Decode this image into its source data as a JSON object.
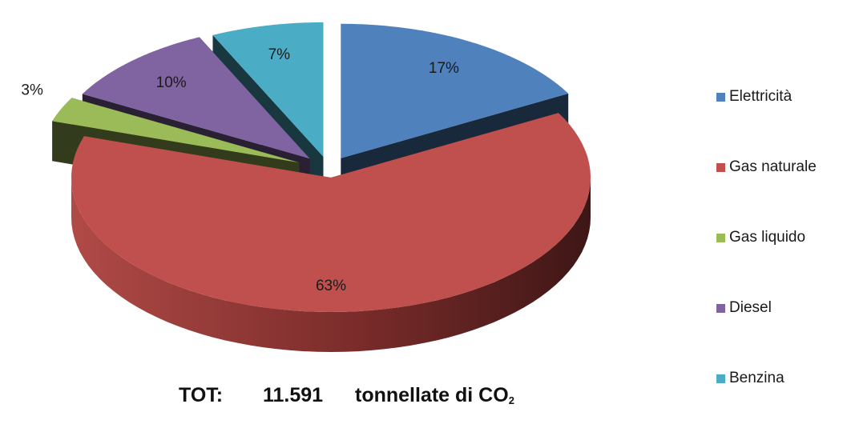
{
  "chart_data": {
    "type": "pie",
    "three_d": true,
    "exploded": true,
    "categories": [
      "Elettricità",
      "Gas naturale",
      "Gas liquido",
      "Diesel",
      "Benzina"
    ],
    "values": [
      17,
      63,
      3,
      10,
      7
    ],
    "data_labels": [
      "17%",
      "63%",
      "3%",
      "10%",
      "7%"
    ],
    "colors": [
      "#4F81BD",
      "#C0504D",
      "#9BBB59",
      "#8064A2",
      "#4BACC6"
    ],
    "legend_position": "right"
  },
  "footer": {
    "tot_label": "TOT:",
    "tot_value": "11.591",
    "unit_text": "tonnellate di CO",
    "unit_subscript": "2"
  }
}
